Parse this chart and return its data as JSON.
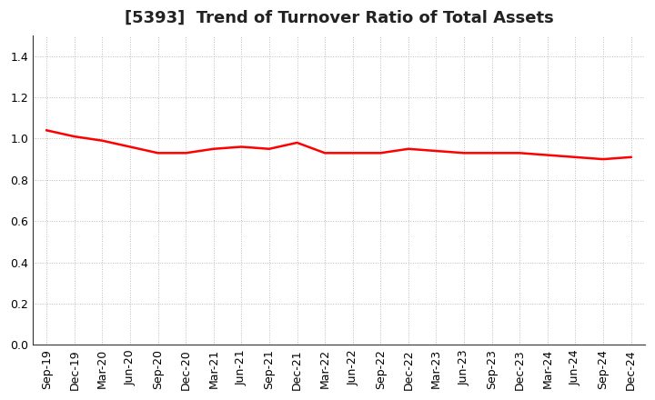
{
  "title": "[5393]  Trend of Turnover Ratio of Total Assets",
  "x_labels": [
    "Sep-19",
    "Dec-19",
    "Mar-20",
    "Jun-20",
    "Sep-20",
    "Dec-20",
    "Mar-21",
    "Jun-21",
    "Sep-21",
    "Dec-21",
    "Mar-22",
    "Jun-22",
    "Sep-22",
    "Dec-22",
    "Mar-23",
    "Jun-23",
    "Sep-23",
    "Dec-23",
    "Mar-24",
    "Jun-24",
    "Sep-24",
    "Dec-24"
  ],
  "y_values": [
    1.04,
    1.01,
    0.99,
    0.96,
    0.93,
    0.93,
    0.95,
    0.96,
    0.95,
    0.98,
    0.93,
    0.93,
    0.93,
    0.95,
    0.94,
    0.93,
    0.93,
    0.93,
    0.92,
    0.91,
    0.9,
    0.91
  ],
  "line_color": "#ff0000",
  "line_width": 1.8,
  "ylim": [
    0.0,
    1.5
  ],
  "yticks": [
    0.0,
    0.2,
    0.4,
    0.6,
    0.8,
    1.0,
    1.2,
    1.4
  ],
  "background_color": "#ffffff",
  "grid_color": "#bbbbbb",
  "title_fontsize": 13,
  "tick_fontsize": 9
}
